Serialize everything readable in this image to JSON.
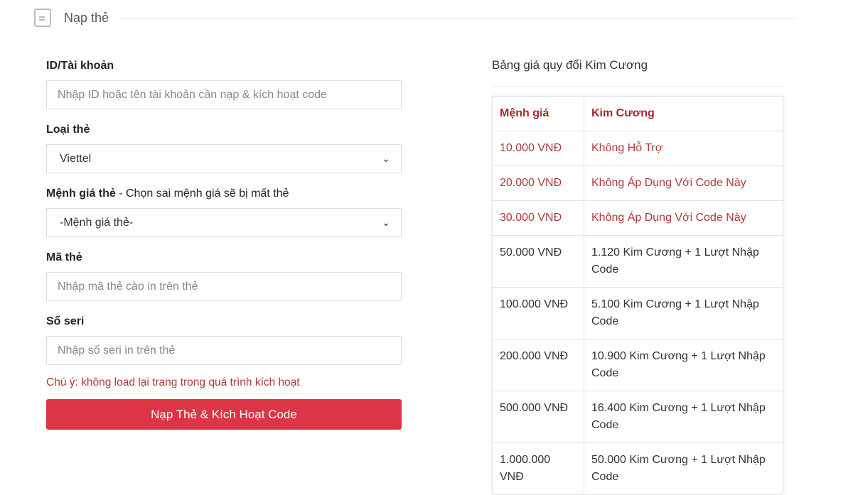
{
  "header": {
    "title": "Nạp thẻ",
    "icon": "document-icon"
  },
  "form": {
    "account": {
      "label": "ID/Tài khoản",
      "placeholder": "Nhập ID hoặc tên tài khoản cần nạp & kích hoạt code"
    },
    "card_type": {
      "label": "Loại thẻ",
      "value": "Viettel"
    },
    "denomination": {
      "label": "Mệnh giá thẻ",
      "hint": " - Chọn sai mệnh giá sẽ bị mất thẻ",
      "value": "-Mệnh giá thẻ-"
    },
    "code": {
      "label": "Mã thẻ",
      "placeholder": "Nhập mã thẻ cào in trên thẻ"
    },
    "serial": {
      "label": "Số seri",
      "placeholder": "Nhập số seri in trên thẻ"
    },
    "note": "Chú ý: không load lại trang trong quá trình kích hoạt",
    "submit": "Nạp Thẻ & Kích Hoạt Code"
  },
  "table": {
    "title": "Bảng giá quy đổi Kim Cương",
    "headers": [
      "Mệnh giá",
      "Kim Cương"
    ],
    "rows": [
      [
        "10.000 VNĐ",
        "Không Hỗ Trợ"
      ],
      [
        "20.000 VNĐ",
        "Không Áp Dụng Với Code Này"
      ],
      [
        "30.000 VNĐ",
        "Không Áp Dụng Với Code Này"
      ],
      [
        "50.000 VNĐ",
        "1.120 Kim Cương + 1 Lượt Nhập Code"
      ],
      [
        "100.000 VNĐ",
        "5.100 Kim Cương + 1 Lượt Nhập Code"
      ],
      [
        "200.000 VNĐ",
        "10.900 Kim Cương + 1 Lượt Nhập Code"
      ],
      [
        "500.000 VNĐ",
        "16.400 Kim Cương + 1 Lượt Nhập Code"
      ],
      [
        "1.000.000 VNĐ",
        "50.000 Kim Cương + 1 Lượt Nhập Code"
      ]
    ]
  },
  "colors": {
    "accent": "#dc3545",
    "table_header": "#a52a2a",
    "note": "#b03a3a"
  }
}
